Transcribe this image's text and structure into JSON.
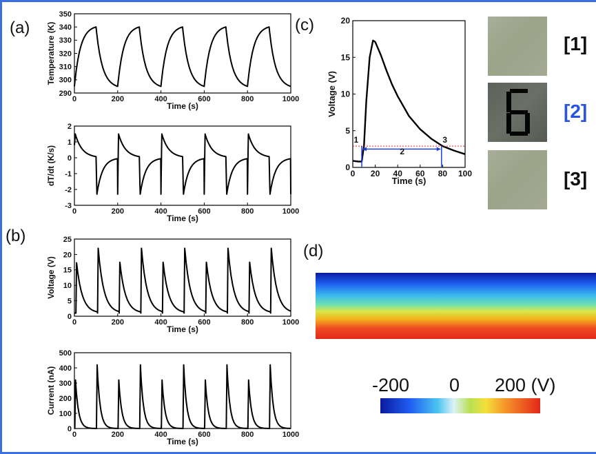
{
  "panel_labels": [
    "(a)",
    "(b)",
    "(c)",
    "(d)"
  ],
  "chart_data": [
    {
      "id": "a1",
      "type": "line",
      "xlabel": "Time (s)",
      "ylabel": "Temperature (K)",
      "xlim": [
        0,
        1000
      ],
      "ylim": [
        290,
        350
      ],
      "xticks": [
        0,
        200,
        400,
        600,
        800,
        1000
      ],
      "yticks": [
        290,
        300,
        310,
        320,
        330,
        340,
        350
      ],
      "series": [
        {
          "period": 200,
          "rise_time": 100,
          "min": 295,
          "max": 340,
          "description": "periodic heating/cooling cycles"
        }
      ]
    },
    {
      "id": "a2",
      "type": "line",
      "xlabel": "Time (s)",
      "ylabel": "dT/dt (K/s)",
      "xlim": [
        0,
        1000
      ],
      "ylim": [
        -3,
        2
      ],
      "xticks": [
        0,
        200,
        400,
        600,
        800,
        1000
      ],
      "yticks": [
        -3,
        -2,
        -1,
        0,
        1,
        2
      ],
      "series": [
        {
          "period": 200,
          "peak": 1.5,
          "trough": -2.3
        }
      ]
    },
    {
      "id": "b1",
      "type": "line",
      "xlabel": "Time (s)",
      "ylabel": "Voltage (V)",
      "xlim": [
        0,
        1000
      ],
      "ylim": [
        0,
        25
      ],
      "xticks": [
        0,
        200,
        400,
        600,
        800,
        1000
      ],
      "yticks": [
        0,
        5,
        10,
        15,
        20,
        25
      ],
      "series": [
        {
          "peak_times": [
            10,
            110,
            210,
            310,
            410,
            510,
            610,
            710,
            810,
            910
          ],
          "peak_values": [
            17.3,
            22,
            17.5,
            22,
            17.5,
            22,
            17.5,
            22,
            17.5,
            22
          ],
          "baseline": 1
        }
      ]
    },
    {
      "id": "b2",
      "type": "line",
      "xlabel": "Time (s)",
      "ylabel": "Current (nA)",
      "xlim": [
        0,
        1000
      ],
      "ylim": [
        0,
        500
      ],
      "xticks": [
        0,
        200,
        400,
        600,
        800,
        1000
      ],
      "yticks": [
        0,
        100,
        200,
        300,
        400,
        500
      ],
      "series": [
        {
          "peak_times": [
            5,
            105,
            205,
            305,
            405,
            505,
            605,
            705,
            805,
            905
          ],
          "peak_values": [
            320,
            420,
            320,
            420,
            320,
            420,
            320,
            420,
            320,
            420
          ]
        }
      ]
    },
    {
      "id": "c",
      "type": "line",
      "xlabel": "Time (s)",
      "ylabel": "Voltage (V)",
      "xlim": [
        0,
        100
      ],
      "ylim": [
        0,
        20
      ],
      "xticks": [
        0,
        20,
        40,
        60,
        80,
        100
      ],
      "yticks": [
        0,
        5,
        10,
        15,
        20
      ],
      "series": [
        {
          "x": [
            0,
            5,
            8,
            10,
            12,
            15,
            18,
            20,
            25,
            30,
            35,
            40,
            50,
            60,
            70,
            80,
            90,
            100
          ],
          "y": [
            0.9,
            0.8,
            0.8,
            3,
            9,
            15,
            17.3,
            17.1,
            15.3,
            13.2,
            11.3,
            9.7,
            7.0,
            5.2,
            3.9,
            2.9,
            2.3,
            1.8
          ]
        }
      ],
      "threshold": 2.9,
      "annotations": [
        {
          "text": "1",
          "x": 3,
          "y": 3.4
        },
        {
          "text": "2",
          "x": 44,
          "y": 1.8
        },
        {
          "text": "3",
          "x": 82,
          "y": 3.4
        }
      ],
      "span": [
        8,
        79
      ]
    }
  ],
  "photo_labels": [
    "[1]",
    "[2]",
    "[3]"
  ],
  "display_digit": "6",
  "colorbar": {
    "min_label": "-200",
    "mid_label": "0",
    "max_label": "200 (V)"
  }
}
